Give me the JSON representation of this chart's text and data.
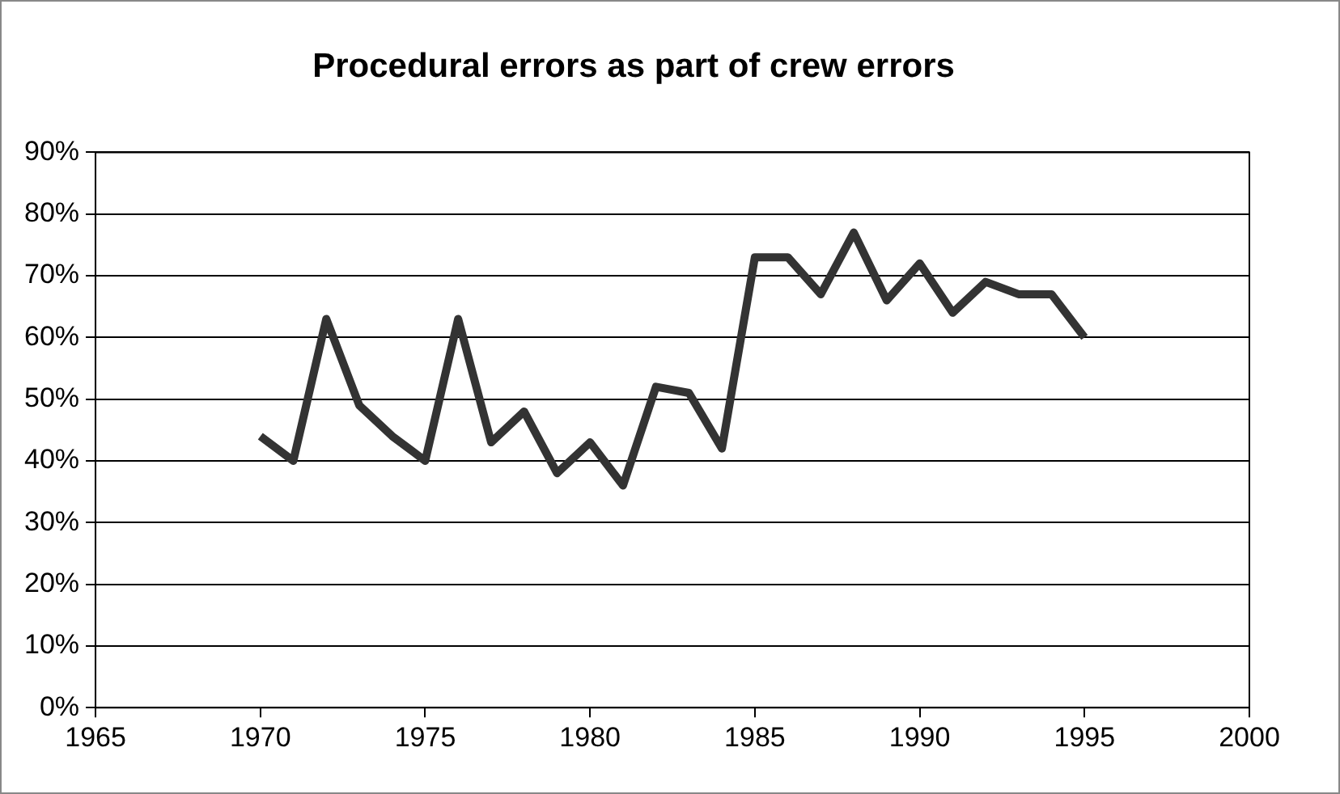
{
  "chart_data": {
    "type": "line",
    "title": "Procedural errors as part of crew errors",
    "x": [
      1970,
      1971,
      1972,
      1973,
      1974,
      1975,
      1976,
      1977,
      1978,
      1979,
      1980,
      1981,
      1982,
      1983,
      1984,
      1985,
      1986,
      1987,
      1988,
      1989,
      1990,
      1991,
      1992,
      1993,
      1994,
      1995
    ],
    "series": [
      {
        "color": "#333333",
        "values": [
          44,
          40,
          63,
          49,
          44,
          40,
          63,
          43,
          48,
          38,
          43,
          36,
          52,
          51,
          42,
          73,
          73,
          67,
          77,
          66,
          72,
          64,
          69,
          67,
          67,
          60
        ]
      }
    ],
    "xlim": [
      1965,
      2000
    ],
    "xticks": [
      1965,
      1970,
      1975,
      1980,
      1985,
      1990,
      1995,
      2000
    ],
    "ylim": [
      0,
      90
    ],
    "yticks": [
      {
        "value": 0,
        "label": "0%"
      },
      {
        "value": 10,
        "label": "10%"
      },
      {
        "value": 20,
        "label": "20%"
      },
      {
        "value": 30,
        "label": "30%"
      },
      {
        "value": 40,
        "label": "40%"
      },
      {
        "value": 50,
        "label": "50%"
      },
      {
        "value": 60,
        "label": "60%"
      },
      {
        "value": 70,
        "label": "70%"
      },
      {
        "value": 80,
        "label": "80%"
      },
      {
        "value": 90,
        "label": "90%"
      }
    ],
    "grid": "y",
    "legend": false,
    "marker": "none",
    "line_style": "solid"
  }
}
